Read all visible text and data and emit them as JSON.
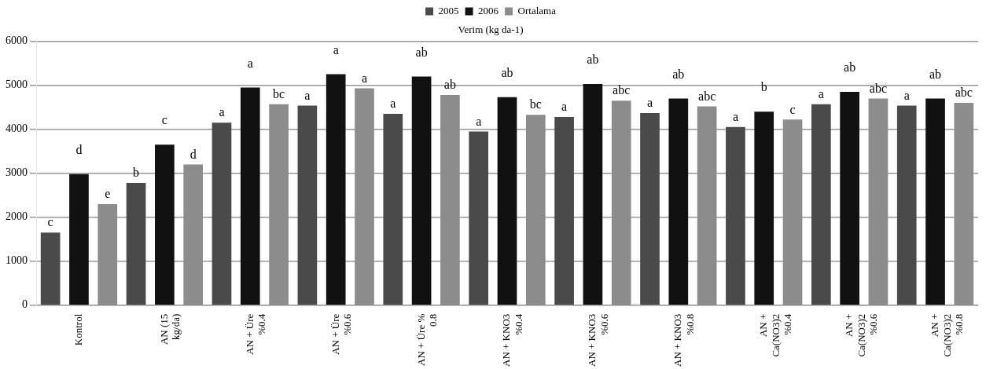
{
  "chart_data": {
    "type": "bar",
    "title": "Verim (kg da-1)",
    "categories": [
      "Kontrol",
      "AN (15 kg/da)",
      "AN + Üre %0.4",
      "AN + Üre %0.6",
      "AN + Üre % 0.8",
      "AN + KNO3 %0.4",
      "AN + KNO3 %0.6",
      "AN + KNO3 %0.8",
      "AN + Ca(NO3)2 %0.4",
      "AN + Ca(NO3)2 %0.6",
      "AN + Ca(NO3)2 %0.8"
    ],
    "series": [
      {
        "name": "2005",
        "color": "#4a4a4a",
        "values": [
          1650,
          2780,
          4150,
          4540,
          4350,
          3950,
          4280,
          4370,
          4050,
          4570,
          4540
        ],
        "value_labels": [
          "c",
          "b",
          "a",
          "a",
          "a",
          "a",
          "a",
          "a",
          "a",
          "a",
          "a"
        ]
      },
      {
        "name": "2006",
        "color": "#111111",
        "values": [
          2980,
          3650,
          4950,
          5250,
          5200,
          4730,
          5030,
          4700,
          4400,
          4850,
          4700
        ],
        "value_labels": [
          "d",
          "c",
          "a",
          "a",
          "ab",
          "ab",
          "ab",
          "ab",
          "b",
          "ab",
          "ab"
        ]
      },
      {
        "name": "Ortalama",
        "color": "#8c8c8c",
        "values": [
          2300,
          3200,
          4570,
          4930,
          4780,
          4330,
          4650,
          4520,
          4220,
          4700,
          4600
        ],
        "value_labels": [
          "e",
          "d",
          "bc",
          "a",
          "ab",
          "bc",
          "abc",
          "abc",
          "c",
          "abc",
          "abc"
        ]
      }
    ],
    "ylim": [
      0,
      6000
    ],
    "yticks": [
      0,
      1000,
      2000,
      3000,
      4000,
      5000,
      6000
    ],
    "grid": "y",
    "legend": "top"
  }
}
